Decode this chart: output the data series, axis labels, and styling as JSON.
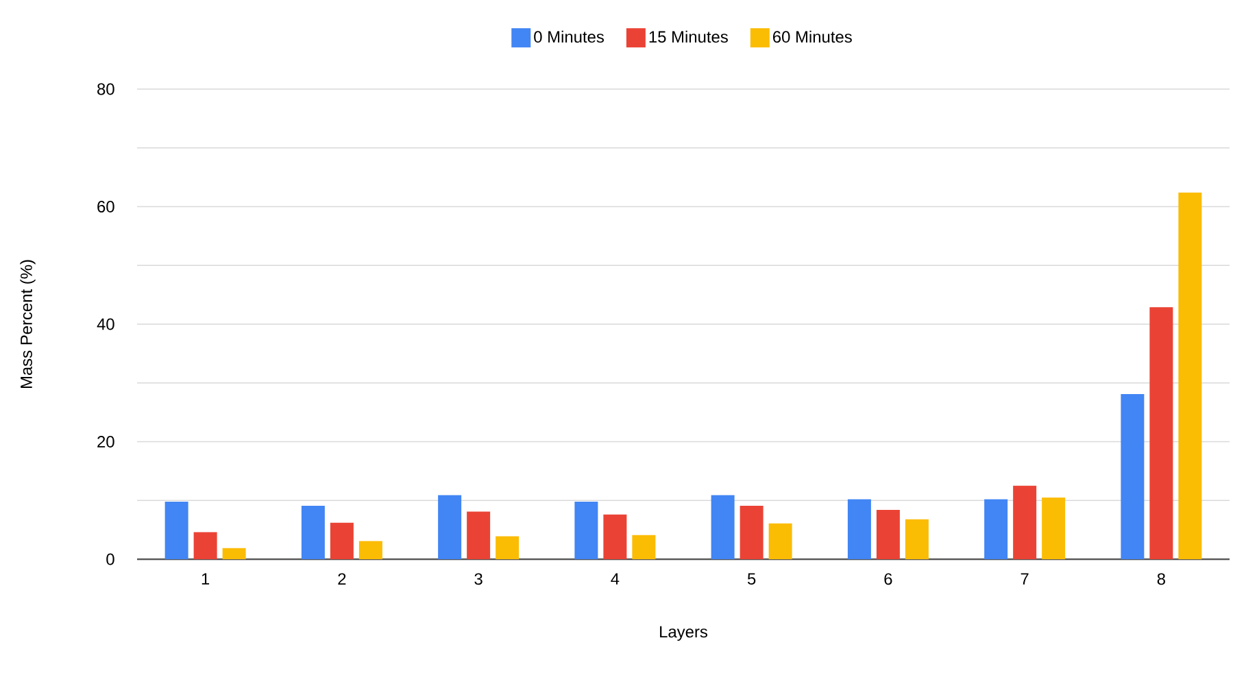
{
  "chart_data": {
    "type": "bar",
    "xlabel": "Layers",
    "ylabel": "Mass Percent (%)",
    "categories": [
      "1",
      "2",
      "3",
      "4",
      "5",
      "6",
      "7",
      "8"
    ],
    "series": [
      {
        "name": "0 Minutes",
        "color": "#4285f4",
        "values": [
          9.8,
          9.1,
          10.9,
          9.8,
          10.9,
          10.2,
          10.2,
          28.1
        ]
      },
      {
        "name": "15 Minutes",
        "color": "#ea4335",
        "values": [
          4.6,
          6.2,
          8.1,
          7.6,
          9.1,
          8.4,
          12.5,
          42.9
        ]
      },
      {
        "name": "60 Minutes",
        "color": "#fbbc04",
        "values": [
          1.9,
          3.1,
          3.9,
          4.1,
          6.1,
          6.8,
          10.5,
          62.4
        ]
      }
    ],
    "ylim": [
      0,
      80
    ],
    "yticks": [
      0,
      {
        "value": 10,
        "label": null
      },
      20,
      {
        "value": 30,
        "label": null
      },
      40,
      {
        "value": 50,
        "label": null
      },
      60,
      {
        "value": 70,
        "label": null
      },
      80
    ],
    "grid": "y",
    "legend": "top"
  }
}
